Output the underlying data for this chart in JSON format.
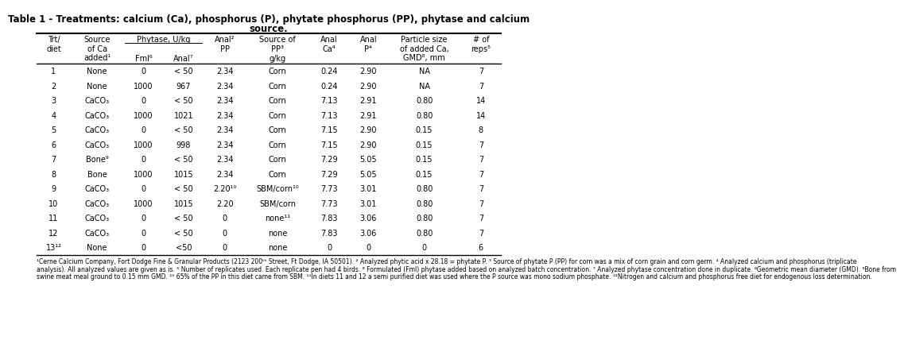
{
  "title_line1": "Table 1 - Treatments: calcium (Ca), phosphorus (P), phytate phosphorus (PP), phytase and calcium",
  "title_line2": "source.",
  "bg_color": "#FFFFFF",
  "data_rows": [
    [
      "1",
      "None",
      "0",
      "< 50",
      "2.34",
      "Corn",
      "0.24",
      "2.90",
      "NA",
      "7"
    ],
    [
      "2",
      "None",
      "1000",
      "967",
      "2.34",
      "Corn",
      "0.24",
      "2.90",
      "NA",
      "7"
    ],
    [
      "3",
      "CaCO₃",
      "0",
      "< 50",
      "2.34",
      "Corn",
      "7.13",
      "2.91",
      "0.80",
      "14"
    ],
    [
      "4",
      "CaCO₃",
      "1000",
      "1021",
      "2.34",
      "Corn",
      "7.13",
      "2.91",
      "0.80",
      "14"
    ],
    [
      "5",
      "CaCO₃",
      "0",
      "< 50",
      "2.34",
      "Corn",
      "7.15",
      "2.90",
      "0.15",
      "8"
    ],
    [
      "6",
      "CaCO₃",
      "1000",
      "998",
      "2.34",
      "Corn",
      "7.15",
      "2.90",
      "0.15",
      "7"
    ],
    [
      "7",
      "Bone⁹",
      "0",
      "< 50",
      "2.34",
      "Corn",
      "7.29",
      "5.05",
      "0.15",
      "7"
    ],
    [
      "8",
      "Bone",
      "1000",
      "1015",
      "2.34",
      "Corn",
      "7.29",
      "5.05",
      "0.15",
      "7"
    ],
    [
      "9",
      "CaCO₃",
      "0",
      "< 50",
      "2.20¹⁰",
      "SBM/corn¹⁰",
      "7.73",
      "3.01",
      "0.80",
      "7"
    ],
    [
      "10",
      "CaCO₃",
      "1000",
      "1015",
      "2.20",
      "SBM/corn",
      "7.73",
      "3.01",
      "0.80",
      "7"
    ],
    [
      "11",
      "CaCO₃",
      "0",
      "< 50",
      "0",
      "none¹¹",
      "7.83",
      "3.06",
      "0.80",
      "7"
    ],
    [
      "12",
      "CaCO₃",
      "0",
      "< 50",
      "0",
      "none",
      "7.83",
      "3.06",
      "0.80",
      "7"
    ],
    [
      "13¹²",
      "None",
      "0",
      "<50",
      "0",
      "none",
      "0",
      "0",
      "0",
      "6"
    ]
  ],
  "footnote_lines": [
    "¹Cerne Calcium Company, Fort Dodge Fine & Granular Products (2123 200ᵗʰ Street, Ft Dodge, IA 50501). ² Analyzed phytic acid x 28.18 = phytate P. ³ Source of phytate P (PP) for corn was a mix of corn grain and corn germ. ⁴ Analyzed calcium and phosphorus (triplicate",
    "analysis). All analyzed values are given as is. ⁵ Number of replicates used. Each replicate pen had 4 birds. ⁶ Formulated (Fml) phytase added based on analyzed batch concentration. ⁷ Analyzed phytase concentration done in duplicate. ⁸Geometric mean diameter (GMD). ⁹Bone from",
    "swine meat meal ground to 0.15 mm GMD. ¹⁰ 65% of the PP in this diet came from SBM. ¹¹In diets 11 and 12 a semi purified diet was used where the P source was mono sodium phosphate. ¹²Nitrogen and calcium and phosphorus free diet for endogenous loss determination."
  ]
}
